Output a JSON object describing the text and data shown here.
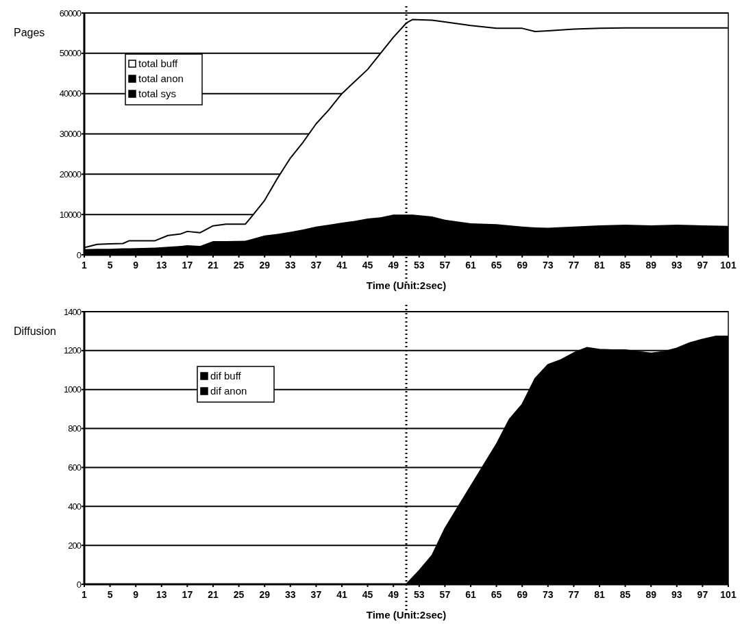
{
  "chart_data": [
    {
      "type": "area",
      "stacked": true,
      "ylabel": "Pages",
      "xlabel": "Time (Unit:2sec)",
      "x": [
        1,
        3,
        5,
        7,
        8,
        12,
        14,
        16,
        17,
        19,
        21,
        23,
        26,
        27,
        29,
        31,
        33,
        35,
        37,
        39,
        41,
        43,
        45,
        47,
        49,
        51,
        52,
        55,
        57,
        61,
        65,
        69,
        71,
        73,
        77,
        81,
        85,
        89,
        93,
        97,
        101
      ],
      "xlim": [
        1,
        101
      ],
      "xticks": [
        1,
        5,
        9,
        13,
        17,
        21,
        25,
        29,
        33,
        37,
        41,
        45,
        49,
        53,
        57,
        61,
        65,
        69,
        73,
        77,
        81,
        85,
        89,
        93,
        97,
        101
      ],
      "ylim": [
        0,
        60000
      ],
      "yticks": [
        0,
        10000,
        20000,
        30000,
        40000,
        50000,
        60000
      ],
      "grid": "y",
      "legend": "top left",
      "series": [
        {
          "name": "total sys",
          "color": "#000000",
          "values": [
            1400,
            1500,
            1500,
            1600,
            1600,
            1800,
            2000,
            2200,
            2400,
            2200,
            3400,
            3400,
            3500,
            3900,
            4800,
            5200,
            5700,
            6300,
            7000,
            7500,
            8000,
            8400,
            9000,
            9300,
            10000,
            10000,
            10000,
            9500,
            8700,
            7800,
            7600,
            7000,
            6800,
            6700,
            7000,
            7300,
            7500,
            7300,
            7500,
            7300,
            7200
          ]
        },
        {
          "name": "total anon",
          "color": "#000000",
          "values": [
            null,
            null,
            null,
            null,
            null,
            null,
            null,
            null,
            null,
            null,
            null,
            null,
            null,
            null,
            null,
            null,
            null,
            null,
            null,
            null,
            null,
            null,
            null,
            null,
            null,
            null,
            null,
            null,
            null,
            null,
            null,
            null,
            null,
            null,
            null,
            null,
            null,
            null,
            null,
            null,
            null
          ]
        },
        {
          "name": "total buff",
          "color": "#ffffff",
          "values": [
            400,
            1100,
            1200,
            1200,
            1900,
            1700,
            2800,
            3000,
            3400,
            3300,
            3800,
            4200,
            4100,
            5600,
            8700,
            13800,
            18300,
            21700,
            25500,
            28500,
            32000,
            34600,
            37000,
            40700,
            44000,
            47500,
            48400,
            48700,
            49100,
            49100,
            48600,
            49200,
            48600,
            48900,
            49000,
            48900,
            48800,
            49000,
            48800,
            49000,
            49100
          ]
        }
      ],
      "ref_lines": [
        {
          "axis": "x",
          "value": 51,
          "line_style": "dotted"
        }
      ]
    },
    {
      "type": "area",
      "stacked": true,
      "ylabel": "Diffusion",
      "xlabel": "Time (Unit:2sec)",
      "x": [
        1,
        49,
        51,
        53,
        55,
        57,
        59,
        61,
        63,
        65,
        67,
        69,
        71,
        73,
        75,
        77,
        79,
        81,
        83,
        85,
        87,
        89,
        91,
        93,
        95,
        97,
        99,
        101
      ],
      "xlim": [
        1,
        101
      ],
      "xticks": [
        1,
        5,
        9,
        13,
        17,
        21,
        25,
        29,
        33,
        37,
        41,
        45,
        49,
        53,
        57,
        61,
        65,
        69,
        73,
        77,
        81,
        85,
        89,
        93,
        97,
        101
      ],
      "ylim": [
        0,
        1400
      ],
      "yticks": [
        0,
        200,
        400,
        600,
        800,
        1000,
        1200,
        1400
      ],
      "grid": "y",
      "legend": "left",
      "series": [
        {
          "name": "dif anon",
          "color": "#000000",
          "values": [
            null,
            null,
            null,
            null,
            null,
            null,
            null,
            null,
            null,
            null,
            null,
            null,
            null,
            null,
            null,
            null,
            null,
            null,
            null,
            null,
            null,
            null,
            null,
            null,
            null,
            null,
            null,
            null
          ]
        },
        {
          "name": "dif buff",
          "color": "#000000",
          "values": [
            0,
            0,
            0,
            70,
            148,
            286,
            395,
            503,
            611,
            719,
            846,
            924,
            1056,
            1128,
            1152,
            1188,
            1215,
            1206,
            1203,
            1203,
            1194,
            1186,
            1194,
            1212,
            1239,
            1258,
            1273,
            1273
          ]
        }
      ],
      "ref_lines": [
        {
          "axis": "x",
          "value": 51,
          "line_style": "dotted"
        }
      ]
    }
  ]
}
